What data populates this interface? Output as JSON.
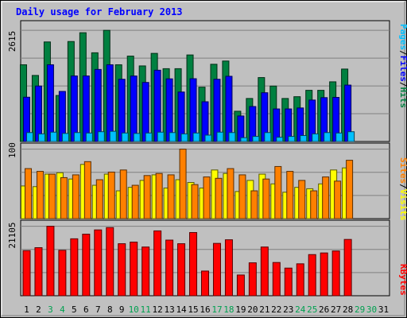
{
  "chart_data": [
    {
      "type": "bar",
      "panel": "top",
      "title": "Daily usage for February 2013",
      "max_label": "2615",
      "ylim": [
        0,
        2615
      ],
      "grid": true,
      "legend": [
        "Pages",
        "/",
        "Files",
        "/",
        "Hits"
      ],
      "x": [
        "1",
        "2",
        "3",
        "4",
        "5",
        "6",
        "7",
        "8",
        "9",
        "10",
        "11",
        "12",
        "13",
        "14",
        "15",
        "16",
        "17",
        "18",
        "19",
        "20",
        "21",
        "22",
        "23",
        "24",
        "25",
        "26",
        "27",
        "28",
        "29",
        "30",
        "31"
      ],
      "series": [
        {
          "name": "Hits",
          "color": "#008040",
          "values": [
            1805,
            1554,
            2342,
            1083,
            2352,
            2559,
            2087,
            2615,
            1805,
            2009,
            1778,
            2073,
            1713,
            1713,
            2036,
            1278,
            1817,
            1893,
            712,
            1012,
            1504,
            1304,
            1012,
            1054,
            1204,
            1204,
            1404,
            1704,
            null,
            null,
            null
          ]
        },
        {
          "name": "Files",
          "color": "#0000ff",
          "values": [
            1042,
            1305,
            1805,
            1178,
            1542,
            1542,
            1695,
            1805,
            1464,
            1541,
            1389,
            1677,
            1474,
            1164,
            1477,
            935,
            1464,
            1534,
            601,
            823,
            1147,
            766,
            766,
            789,
            975,
            1032,
            1038,
            1327,
            null,
            null,
            null
          ]
        },
        {
          "name": "Pages",
          "color": "#00c0ff",
          "values": [
            210,
            180,
            220,
            190,
            210,
            200,
            230,
            240,
            200,
            190,
            200,
            220,
            210,
            180,
            200,
            150,
            220,
            210,
            90,
            120,
            210,
            100,
            120,
            140,
            180,
            210,
            200,
            230,
            null,
            null,
            null
          ]
        }
      ]
    },
    {
      "type": "bar",
      "panel": "middle",
      "max_label": "100",
      "ylim": [
        0,
        100
      ],
      "grid": true,
      "legend": [
        "Sites",
        "/",
        "Visits"
      ],
      "series": [
        {
          "name": "Sites",
          "color": "#ffff00",
          "values": [
            47,
            46,
            64,
            66,
            57,
            78,
            48,
            64,
            40,
            45,
            55,
            63,
            44,
            56,
            52,
            44,
            70,
            65,
            39,
            55,
            64,
            50,
            38,
            45,
            43,
            50,
            70,
            73,
            null,
            null,
            null
          ]
        },
        {
          "name": "Visits",
          "color": "#ff8000",
          "values": [
            72,
            68,
            64,
            59,
            63,
            82,
            56,
            67,
            70,
            48,
            62,
            65,
            63,
            100,
            49,
            60,
            58,
            72,
            63,
            40,
            57,
            75,
            68,
            55,
            40,
            60,
            54,
            84,
            null,
            null,
            null
          ]
        }
      ]
    },
    {
      "type": "bar",
      "panel": "bottom",
      "max_label": "21105",
      "ylim": [
        0,
        21105
      ],
      "grid": true,
      "legend": [
        "KBytes"
      ],
      "series": [
        {
          "name": "KBytes",
          "color": "#ff0000",
          "values": [
            13700,
            14600,
            21105,
            13800,
            17300,
            18700,
            20000,
            20700,
            15800,
            16300,
            14800,
            19700,
            16900,
            15800,
            19200,
            7500,
            15900,
            17000,
            6300,
            10000,
            14800,
            10100,
            8400,
            9700,
            12500,
            13000,
            13600,
            17100,
            null,
            null,
            null
          ]
        }
      ]
    }
  ]
}
